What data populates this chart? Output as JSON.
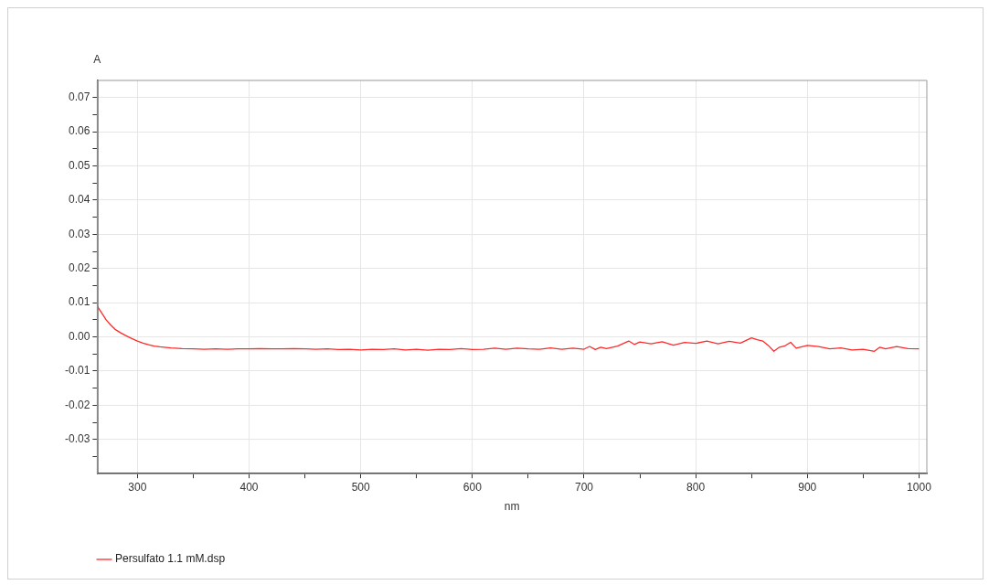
{
  "chart_data": {
    "type": "line",
    "xlabel": "nm",
    "ylabel": "A",
    "x": [
      264,
      268,
      272,
      276,
      280,
      285,
      290,
      295,
      300,
      305,
      310,
      315,
      320,
      330,
      340,
      350,
      360,
      370,
      380,
      390,
      400,
      410,
      420,
      430,
      440,
      450,
      460,
      470,
      480,
      490,
      500,
      510,
      520,
      530,
      540,
      550,
      560,
      570,
      580,
      590,
      600,
      610,
      620,
      630,
      640,
      650,
      660,
      670,
      680,
      690,
      700,
      705,
      710,
      715,
      720,
      730,
      740,
      745,
      750,
      760,
      770,
      780,
      790,
      800,
      810,
      820,
      830,
      840,
      850,
      855,
      860,
      865,
      870,
      875,
      880,
      885,
      890,
      900,
      910,
      920,
      930,
      940,
      950,
      960,
      965,
      970,
      980,
      990,
      1000
    ],
    "series": [
      {
        "name": "Persulfato 1.1 mM.dsp",
        "color": "#ff2a2a",
        "values": [
          0.009,
          0.007,
          0.005,
          0.0035,
          0.0022,
          0.0012,
          0.0003,
          -0.0005,
          -0.0012,
          -0.0018,
          -0.0023,
          -0.0027,
          -0.0029,
          -0.0032,
          -0.0034,
          -0.0035,
          -0.0036,
          -0.0035,
          -0.0036,
          -0.0035,
          -0.0035,
          -0.0034,
          -0.0035,
          -0.0035,
          -0.0034,
          -0.0035,
          -0.0036,
          -0.0035,
          -0.0037,
          -0.0036,
          -0.0038,
          -0.0036,
          -0.0037,
          -0.0035,
          -0.0038,
          -0.0036,
          -0.0039,
          -0.0036,
          -0.0037,
          -0.0034,
          -0.0037,
          -0.0036,
          -0.0033,
          -0.0036,
          -0.0033,
          -0.0035,
          -0.0036,
          -0.0032,
          -0.0036,
          -0.0033,
          -0.0036,
          -0.0028,
          -0.0037,
          -0.003,
          -0.0034,
          -0.0027,
          -0.0012,
          -0.0022,
          -0.0015,
          -0.002,
          -0.0014,
          -0.0024,
          -0.0016,
          -0.0019,
          -0.0012,
          -0.002,
          -0.0013,
          -0.0018,
          -0.0003,
          -0.0008,
          -0.0012,
          -0.0025,
          -0.0042,
          -0.003,
          -0.0026,
          -0.0016,
          -0.0033,
          -0.0025,
          -0.0028,
          -0.0035,
          -0.0032,
          -0.0038,
          -0.0036,
          -0.0042,
          -0.003,
          -0.0035,
          -0.0028,
          -0.0034,
          -0.0035
        ]
      }
    ],
    "xlim": [
      264,
      1007
    ],
    "xticks": [
      300,
      {
        "value": 350,
        "label": null
      },
      400,
      {
        "value": 450,
        "label": null
      },
      500,
      {
        "value": 550,
        "label": null
      },
      600,
      {
        "value": 650,
        "label": null
      },
      700,
      {
        "value": 750,
        "label": null
      },
      800,
      {
        "value": 850,
        "label": null
      },
      900,
      {
        "value": 950,
        "label": null
      },
      1000
    ],
    "ylim": [
      -0.04,
      0.075
    ],
    "yticks": [
      {
        "value": -0.035,
        "label": null
      },
      -0.03,
      {
        "value": -0.025,
        "label": null
      },
      -0.02,
      {
        "value": -0.015,
        "label": null
      },
      -0.01,
      {
        "value": -0.005,
        "label": null
      },
      {
        "value": 0,
        "label": "0.00"
      },
      {
        "value": 0.005,
        "label": null
      },
      0.01,
      {
        "value": 0.015,
        "label": null
      },
      0.02,
      {
        "value": 0.025,
        "label": null
      },
      0.03,
      {
        "value": 0.035,
        "label": null
      },
      0.04,
      {
        "value": 0.045,
        "label": null
      },
      0.05,
      {
        "value": 0.055,
        "label": null
      },
      0.06,
      {
        "value": 0.065,
        "label": null
      },
      0.07
    ],
    "grid": true,
    "legend": "bottom left",
    "marker": "none",
    "line_style": "solid"
  }
}
